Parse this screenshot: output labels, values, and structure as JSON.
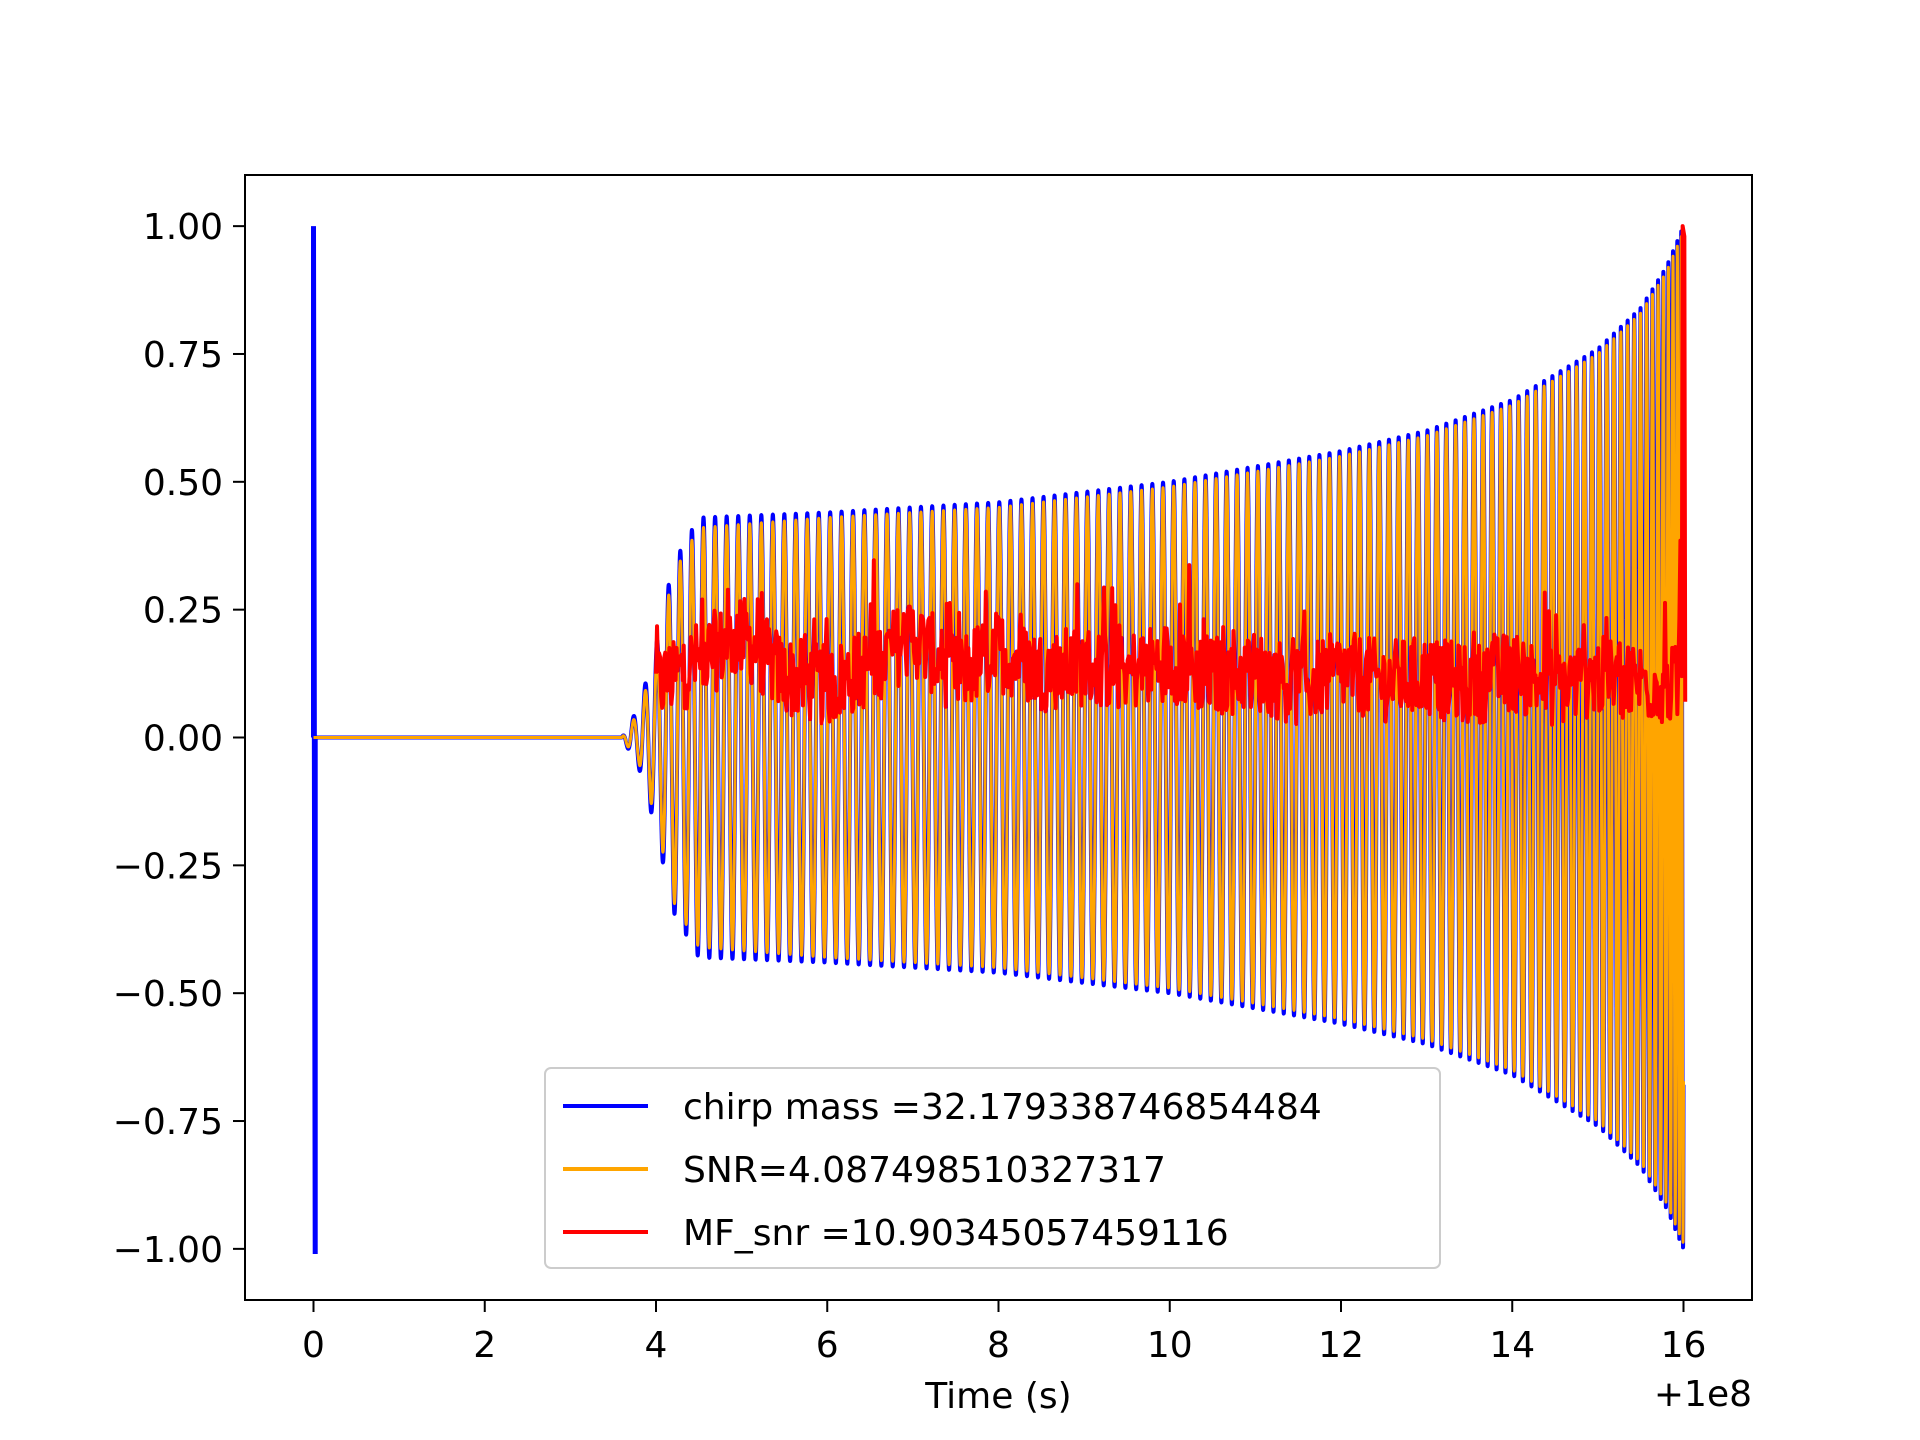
{
  "chart_data": {
    "type": "line",
    "title": "",
    "xlabel": "Time (s)",
    "ylabel": "",
    "x_offset_label": "+1e8",
    "xlim": [
      -0.8,
      16.8
    ],
    "ylim": [
      -1.1,
      1.1
    ],
    "x_ticks": [
      0,
      2,
      4,
      6,
      8,
      10,
      12,
      14,
      16
    ],
    "x_tick_labels": [
      "0",
      "2",
      "4",
      "6",
      "8",
      "10",
      "12",
      "14",
      "16"
    ],
    "y_ticks": [
      1.0,
      0.75,
      0.5,
      0.25,
      0.0,
      -0.25,
      -0.5,
      -0.75,
      -1.0
    ],
    "y_tick_labels": [
      "1.00",
      "0.75",
      "0.50",
      "0.25",
      "0.00",
      "−0.25",
      "−0.50",
      "−0.75",
      "−1.00"
    ],
    "grid": false,
    "legend_position": "bottom-center",
    "series": [
      {
        "name": "chirp mass =32.179338746854484",
        "color": "#0000ff",
        "kind": "chirp-envelope",
        "x": [
          0,
          3.6,
          3.8,
          4.0,
          4.2,
          4.5,
          6,
          8,
          10,
          12,
          13,
          14,
          15,
          15.5,
          15.8,
          16.0
        ],
        "y": [
          0,
          0.0,
          0.06,
          0.18,
          0.34,
          0.43,
          0.44,
          0.46,
          0.5,
          0.56,
          0.6,
          0.66,
          0.76,
          0.84,
          0.92,
          1.0
        ]
      },
      {
        "name": "SNR=4.087498510327317",
        "color": "#ffa500",
        "kind": "chirp-envelope",
        "x": [
          0,
          3.6,
          3.8,
          4.0,
          4.2,
          4.5,
          6,
          8,
          10,
          12,
          13,
          14,
          15,
          15.5,
          15.8,
          16.0
        ],
        "y": [
          0,
          0.0,
          0.05,
          0.16,
          0.32,
          0.41,
          0.43,
          0.45,
          0.49,
          0.55,
          0.59,
          0.65,
          0.75,
          0.83,
          0.91,
          0.99
        ]
      },
      {
        "name": "MF_snr =10.90345057459116",
        "color": "#ff0000",
        "kind": "noise",
        "x": [
          4.0,
          4.5,
          5,
          5.5,
          6,
          6.5,
          7,
          7.5,
          8,
          8.5,
          9,
          9.5,
          10,
          10.5,
          11,
          11.5,
          12,
          12.5,
          13,
          13.5,
          14,
          14.5,
          15,
          15.5,
          15.95,
          16.0,
          16.02
        ],
        "y": [
          0.1,
          0.15,
          0.2,
          0.12,
          0.1,
          0.14,
          0.2,
          0.12,
          0.17,
          0.13,
          0.14,
          0.13,
          0.15,
          0.12,
          0.13,
          0.1,
          0.13,
          0.11,
          0.12,
          0.1,
          0.13,
          0.1,
          0.12,
          0.11,
          0.1,
          1.0,
          0.07
        ]
      }
    ]
  }
}
